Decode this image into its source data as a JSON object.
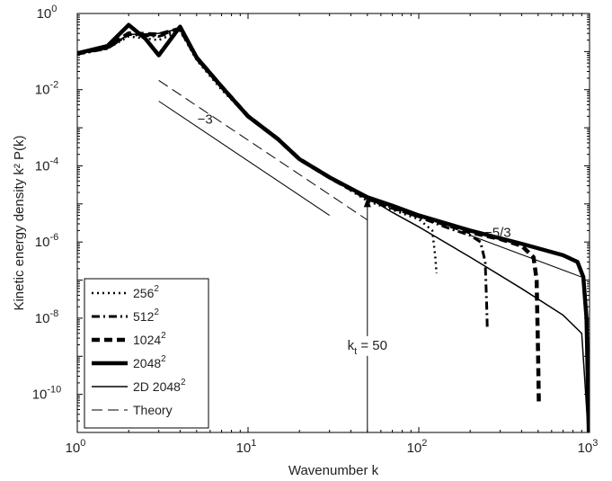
{
  "chart_data": {
    "type": "line",
    "title": "",
    "xlabel": "Wavenumber k",
    "ylabel": "Kinetic energy density k² P(k)",
    "x_scale": "log",
    "y_scale": "log",
    "xlim": [
      1,
      1000
    ],
    "ylim": [
      1e-11,
      1
    ],
    "x_ticks": [
      {
        "value": 1,
        "base": "10",
        "exp": "0"
      },
      {
        "value": 10,
        "base": "10",
        "exp": "1"
      },
      {
        "value": 100,
        "base": "10",
        "exp": "2"
      },
      {
        "value": 1000,
        "base": "10",
        "exp": "3"
      }
    ],
    "y_ticks": [
      {
        "value": 1,
        "base": "10",
        "exp": "0"
      },
      {
        "value": 0.01,
        "base": "10",
        "exp": "-2"
      },
      {
        "value": 0.0001,
        "base": "10",
        "exp": "-4"
      },
      {
        "value": 1e-06,
        "base": "10",
        "exp": "-6"
      },
      {
        "value": 1e-08,
        "base": "10",
        "exp": "-8"
      },
      {
        "value": 1e-10,
        "base": "10",
        "exp": "-10"
      }
    ],
    "grid": false,
    "legend_position": "bottom-left",
    "series": [
      {
        "name": "256²",
        "label_base": "256",
        "label_exp": "2",
        "dash": "2,4",
        "width": 2.5,
        "points": [
          [
            1,
            0.085
          ],
          [
            1.5,
            0.12
          ],
          [
            2,
            0.25
          ],
          [
            3,
            0.2
          ],
          [
            4,
            0.35
          ],
          [
            5,
            0.06
          ],
          [
            7,
            0.01
          ],
          [
            10,
            0.002
          ],
          [
            15,
            0.0005
          ],
          [
            20,
            0.00015
          ],
          [
            30,
            5e-05
          ],
          [
            50,
            1.2e-05
          ],
          [
            70,
            7e-06
          ],
          [
            100,
            4e-06
          ],
          [
            120,
            2e-06
          ],
          [
            125,
            4e-07
          ],
          [
            127,
            1.5e-07
          ]
        ]
      },
      {
        "name": "512²",
        "label_base": "512",
        "label_exp": "2",
        "dash": "9,4,2,4",
        "width": 3,
        "points": [
          [
            1,
            0.085
          ],
          [
            1.5,
            0.12
          ],
          [
            2,
            0.28
          ],
          [
            3,
            0.25
          ],
          [
            4,
            0.38
          ],
          [
            5,
            0.07
          ],
          [
            7,
            0.012
          ],
          [
            10,
            0.002
          ],
          [
            15,
            0.0005
          ],
          [
            20,
            0.00015
          ],
          [
            30,
            5e-05
          ],
          [
            50,
            1.4e-05
          ],
          [
            70,
            8e-06
          ],
          [
            100,
            4.5e-06
          ],
          [
            150,
            2.3e-06
          ],
          [
            200,
            1.5e-06
          ],
          [
            230,
            1e-06
          ],
          [
            245,
            3e-07
          ],
          [
            250,
            2e-08
          ],
          [
            252,
            5e-09
          ]
        ]
      },
      {
        "name": "1024²",
        "label_base": "1024",
        "label_exp": "2",
        "dash": "9,5",
        "width": 4.5,
        "points": [
          [
            1,
            0.09
          ],
          [
            1.5,
            0.13
          ],
          [
            2,
            0.3
          ],
          [
            3,
            0.28
          ],
          [
            4,
            0.4
          ],
          [
            5,
            0.07
          ],
          [
            7,
            0.012
          ],
          [
            10,
            0.002
          ],
          [
            15,
            0.0005
          ],
          [
            20,
            0.00015
          ],
          [
            30,
            5e-05
          ],
          [
            50,
            1.4e-05
          ],
          [
            70,
            8e-06
          ],
          [
            100,
            4.8e-06
          ],
          [
            200,
            1.8e-06
          ],
          [
            300,
            1.2e-06
          ],
          [
            400,
            8e-07
          ],
          [
            470,
            4e-07
          ],
          [
            490,
            1e-07
          ],
          [
            500,
            1e-09
          ],
          [
            505,
            5e-11
          ]
        ]
      },
      {
        "name": "2048²",
        "label_base": "2048",
        "label_exp": "2",
        "dash": "",
        "width": 4.5,
        "points": [
          [
            1,
            0.09
          ],
          [
            1.5,
            0.14
          ],
          [
            2,
            0.5
          ],
          [
            2.5,
            0.22
          ],
          [
            3,
            0.08
          ],
          [
            4,
            0.45
          ],
          [
            5,
            0.07
          ],
          [
            7,
            0.012
          ],
          [
            10,
            0.002
          ],
          [
            15,
            0.0005
          ],
          [
            20,
            0.00015
          ],
          [
            30,
            5e-05
          ],
          [
            50,
            1.5e-05
          ],
          [
            70,
            9e-06
          ],
          [
            100,
            5e-06
          ],
          [
            200,
            2e-06
          ],
          [
            400,
            9e-07
          ],
          [
            700,
            4.5e-07
          ],
          [
            850,
            3e-07
          ],
          [
            920,
            1.2e-07
          ],
          [
            960,
            1e-08
          ],
          [
            980,
            1e-10
          ],
          [
            990,
            1e-11
          ]
        ]
      },
      {
        "name": "2D 2048²",
        "label_base": "2D 2048",
        "label_exp": "2",
        "dash": "",
        "width": 1.5,
        "points": [
          [
            1,
            0.085
          ],
          [
            1.5,
            0.13
          ],
          [
            2,
            0.28
          ],
          [
            3,
            0.3
          ],
          [
            4,
            0.4
          ],
          [
            5,
            0.06
          ],
          [
            7,
            0.011
          ],
          [
            10,
            0.002
          ],
          [
            15,
            0.0005
          ],
          [
            20,
            0.00015
          ],
          [
            30,
            5e-05
          ],
          [
            50,
            1.5e-05
          ],
          [
            70,
            6e-06
          ],
          [
            100,
            2.5e-06
          ],
          [
            200,
            4e-07
          ],
          [
            400,
            6e-08
          ],
          [
            700,
            1.2e-08
          ],
          [
            900,
            4e-09
          ],
          [
            950,
            1e-10
          ],
          [
            980,
            1e-11
          ]
        ]
      },
      {
        "name": "Theory",
        "label_base": "Theory",
        "label_exp": "",
        "dash": "12,6",
        "width": 1,
        "points": [
          [
            3,
            0.0175
          ],
          [
            50,
            3.8e-06
          ]
        ]
      }
    ],
    "reference_lines": [
      {
        "label": "−3",
        "points": [
          [
            3,
            0.005
          ],
          [
            30,
            5e-06
          ]
        ],
        "label_at": [
          5.6,
          0.0013
        ]
      },
      {
        "label": "−5/3",
        "points": [
          [
            200,
            1.5e-06
          ],
          [
            900,
            1.2e-07
          ]
        ],
        "label_at": [
          290,
          1.35e-06
        ]
      }
    ],
    "annotation": {
      "label_main": "k",
      "label_sub": "t",
      "label_rest": " = 50",
      "arrow_x": 50,
      "arrow_from": 1e-11,
      "arrow_to": 1.5e-05,
      "label_at": [
        50,
        1.5e-09
      ]
    }
  }
}
